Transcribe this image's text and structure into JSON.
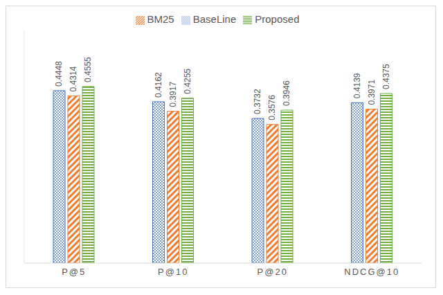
{
  "chart_data": {
    "type": "bar",
    "categories": [
      "P@5",
      "P@10",
      "P@20",
      "NDCG@10"
    ],
    "series": [
      {
        "name": "BaseLine",
        "color": "#4472c4",
        "values": [
          0.4448,
          0.4162,
          0.3732,
          0.4139
        ]
      },
      {
        "name": "BM25",
        "color": "#ed7d31",
        "values": [
          0.4314,
          0.3917,
          0.3576,
          0.3971
        ]
      },
      {
        "name": "Proposed",
        "color": "#70ad47",
        "values": [
          0.4555,
          0.4255,
          0.3946,
          0.4375
        ]
      }
    ],
    "ylim": [
      0,
      0.6
    ],
    "yticks": [
      0,
      0.6
    ],
    "tick_labels": "x",
    "data_labels": true,
    "legend": "top"
  }
}
